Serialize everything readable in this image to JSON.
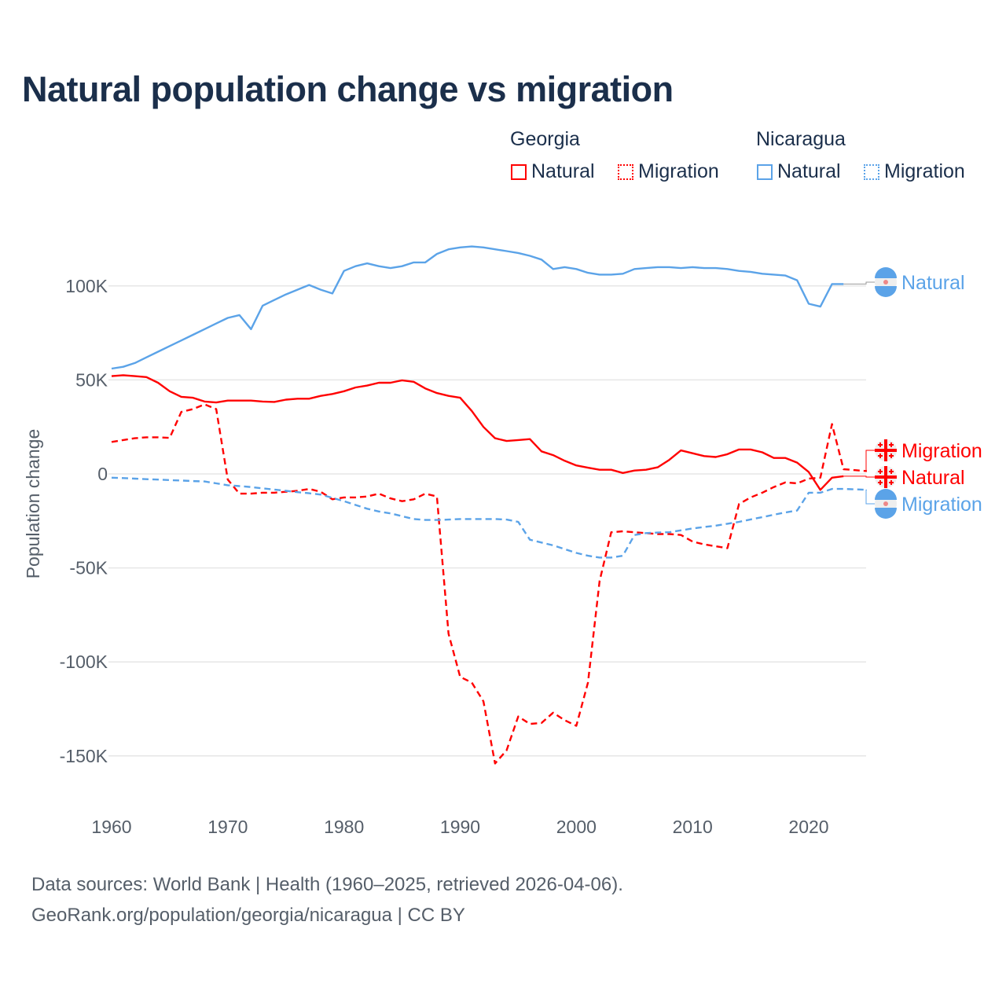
{
  "title": "Natural population change vs migration",
  "legend": {
    "groups": [
      {
        "country": "Georgia",
        "natural": "Natural",
        "migration": "Migration",
        "color": "#ff0000"
      },
      {
        "country": "Nicaragua",
        "natural": "Natural",
        "migration": "Migration",
        "color": "#5ba3e8"
      }
    ]
  },
  "footer": {
    "line1": "Data sources: World Bank | Health (1960–2025, retrieved 2026-04-06).",
    "line2": "GeoRank.org/population/georgia/nicaragua | CC BY"
  },
  "chart_data": {
    "type": "line",
    "title": "Natural population change vs migration",
    "xlabel": "",
    "ylabel": "Population change",
    "xlim": [
      1960,
      2025
    ],
    "ylim": [
      -160000,
      125000
    ],
    "x_ticks": [
      1960,
      1970,
      1980,
      1990,
      2000,
      2010,
      2020
    ],
    "x_tick_labels": [
      "1960",
      "1970",
      "1980",
      "1990",
      "2000",
      "2010",
      "2020"
    ],
    "y_ticks": [
      100000,
      50000,
      0,
      -50000,
      -100000,
      -150000
    ],
    "y_tick_labels": [
      "100K",
      "50K",
      "0",
      "-50K",
      "-100K",
      "-150K"
    ],
    "grid": true,
    "units": "thousands",
    "series": [
      {
        "name": "Nicaragua Natural",
        "country": "Nicaragua",
        "label": "Natural",
        "flag": "nicaragua-flag",
        "color": "#5ba3e8",
        "dash": false,
        "start": 1960,
        "values": [
          56,
          57,
          59,
          62,
          65,
          68,
          71,
          74,
          77,
          80,
          83,
          84.5,
          77,
          89.5,
          92.5,
          95.5,
          98,
          100.5,
          98,
          96,
          108,
          110.5,
          112,
          110.5,
          109.5,
          110.5,
          112.5,
          112.5,
          117,
          119.5,
          120.5,
          121,
          120.5,
          119.5,
          118.5,
          117.5,
          116,
          114,
          109,
          110,
          109,
          107,
          106,
          106,
          106.5,
          109,
          109.5,
          110,
          110,
          109.5,
          110,
          109.5,
          109.5,
          109,
          108,
          107.5,
          106.5,
          106,
          105.5,
          103,
          90.5,
          89,
          101,
          101
        ]
      },
      {
        "name": "Georgia Natural",
        "country": "Georgia",
        "label": "Natural",
        "flag": "georgia-flag",
        "color": "#ff0000",
        "dash": false,
        "start": 1960,
        "values": [
          52,
          52.5,
          52,
          51.5,
          48.5,
          44,
          41,
          40.5,
          38.5,
          38,
          39,
          39,
          39,
          38.5,
          38.3,
          39.5,
          40,
          40,
          41.5,
          42.5,
          44,
          46,
          47,
          48.5,
          48.5,
          49.8,
          49,
          45.5,
          43,
          41.5,
          40.5,
          33.5,
          25,
          19,
          17.5,
          18,
          18.5,
          12,
          10,
          7,
          4.5,
          3.3,
          2.2,
          2.2,
          0.5,
          1.8,
          2.2,
          3.5,
          7.5,
          12.5,
          11,
          9.5,
          9,
          10.5,
          13,
          13,
          11.5,
          8.5,
          8.5,
          6,
          1,
          -8.5,
          -2,
          -1.2
        ]
      },
      {
        "name": "Georgia Migration",
        "country": "Georgia",
        "label": "Migration",
        "flag": "georgia-flag",
        "color": "#ff0000",
        "dash": true,
        "start": 1960,
        "values": [
          17,
          18,
          19,
          19.5,
          19.5,
          19.2,
          33,
          34.5,
          37,
          34.5,
          -3,
          -10.5,
          -10.5,
          -10,
          -10,
          -9.5,
          -9,
          -8,
          -9.5,
          -13.5,
          -12.5,
          -12.5,
          -12,
          -10.5,
          -13,
          -14.5,
          -13.5,
          -10.5,
          -12,
          -85,
          -108,
          -111,
          -121,
          -154,
          -147,
          -129,
          -133,
          -132.5,
          -127,
          -131,
          -134,
          -111,
          -57,
          -31,
          -30.5,
          -31,
          -31.5,
          -32,
          -32,
          -32.5,
          -36,
          -37.5,
          -38.5,
          -39.5,
          -16,
          -12.5,
          -10,
          -7,
          -4.5,
          -5,
          -2.5,
          -2,
          26.5,
          2.5,
          2,
          1.5
        ]
      },
      {
        "name": "Nicaragua Migration",
        "country": "Nicaragua",
        "label": "Migration",
        "flag": "nicaragua-flag",
        "color": "#5ba3e8",
        "dash": true,
        "start": 1960,
        "values": [
          -2,
          -2.2,
          -2.5,
          -2.8,
          -3,
          -3.3,
          -3.5,
          -3.8,
          -4,
          -5,
          -6,
          -6.5,
          -7,
          -7.7,
          -8.3,
          -9,
          -9.7,
          -10.3,
          -11,
          -12.7,
          -14.5,
          -16.5,
          -18.5,
          -20,
          -21,
          -22.5,
          -24,
          -24.5,
          -24.5,
          -24.3,
          -24,
          -24,
          -24,
          -24,
          -24.3,
          -25.5,
          -35,
          -36.5,
          -38,
          -40,
          -42,
          -43.5,
          -44.5,
          -44.5,
          -43.5,
          -32.5,
          -31.5,
          -31.2,
          -31,
          -30,
          -29,
          -28.2,
          -27.5,
          -26.5,
          -25.5,
          -24.2,
          -23,
          -21.7,
          -20.5,
          -19.5,
          -10,
          -10,
          -8,
          -8,
          -8.2,
          -8.5
        ]
      }
    ]
  }
}
